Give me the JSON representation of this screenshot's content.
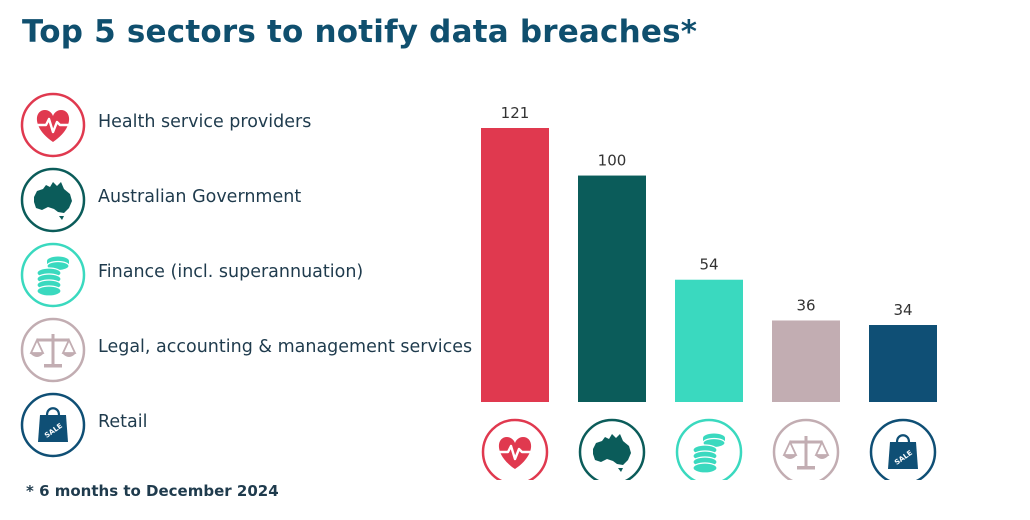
{
  "title": "Top 5 sectors to notify data breaches*",
  "footnote": "* 6 months to December 2024",
  "legend": [
    {
      "label": "Health service providers",
      "icon": "heart-pulse-icon",
      "color": "#e0394f"
    },
    {
      "label": "Australian Government",
      "icon": "australia-map-icon",
      "color": "#0b5c5a"
    },
    {
      "label": "Finance (incl. superannuation)",
      "icon": "coin-stack-icon",
      "color": "#3ad9bf"
    },
    {
      "label": "Legal, accounting & management services",
      "icon": "scales-icon",
      "color": "#c2adb2"
    },
    {
      "label": "Retail",
      "icon": "shopping-bag-icon",
      "color": "#0f4f75"
    }
  ],
  "chart_data": {
    "type": "bar",
    "title": "Top 5 sectors to notify data breaches*",
    "categories": [
      "Health service providers",
      "Australian Government",
      "Finance (incl. superannuation)",
      "Legal, accounting & management services",
      "Retail"
    ],
    "values": [
      121,
      100,
      54,
      36,
      34
    ],
    "colors": [
      "#e0394f",
      "#0b5c5a",
      "#3ad9bf",
      "#c2adb2",
      "#0f4f75"
    ],
    "xlabel": "",
    "ylabel": "",
    "ylim": [
      0,
      121
    ],
    "grid": false,
    "data_labels": true
  }
}
